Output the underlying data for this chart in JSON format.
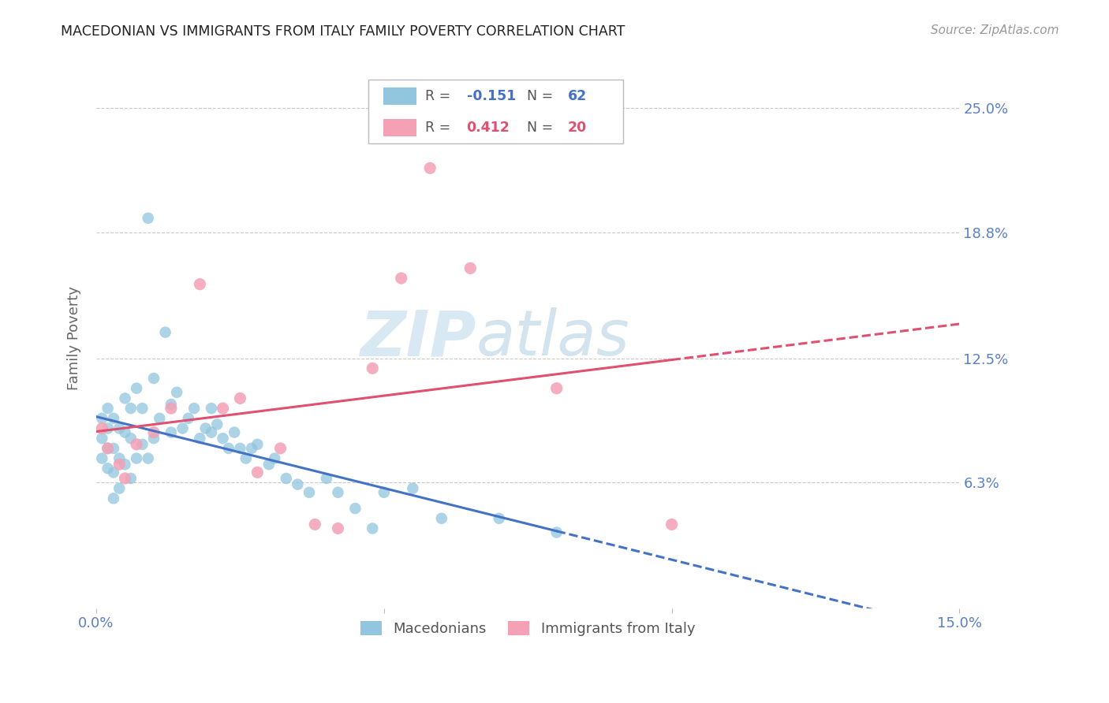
{
  "title": "MACEDONIAN VS IMMIGRANTS FROM ITALY FAMILY POVERTY CORRELATION CHART",
  "source": "Source: ZipAtlas.com",
  "ylabel": "Family Poverty",
  "watermark": "ZIPatlas",
  "xlim": [
    0.0,
    0.15
  ],
  "ylim": [
    0.0,
    0.27
  ],
  "ytick_labels": [
    "6.3%",
    "12.5%",
    "18.8%",
    "25.0%"
  ],
  "ytick_values": [
    0.063,
    0.125,
    0.188,
    0.25
  ],
  "legend_blue_r": "-0.151",
  "legend_blue_n": "62",
  "legend_pink_r": "0.412",
  "legend_pink_n": "20",
  "label_macedonians": "Macedonians",
  "label_italy": "Immigrants from Italy",
  "blue_color": "#92c5de",
  "pink_color": "#f4a0b5",
  "trend_blue_color": "#4472c4",
  "trend_pink_color": "#e05070",
  "axis_color": "#5b7fc7",
  "grid_color": "#c8c8c8",
  "macedonian_x": [
    0.001,
    0.001,
    0.001,
    0.002,
    0.002,
    0.002,
    0.002,
    0.003,
    0.003,
    0.003,
    0.003,
    0.004,
    0.004,
    0.004,
    0.005,
    0.005,
    0.005,
    0.006,
    0.006,
    0.006,
    0.007,
    0.007,
    0.008,
    0.008,
    0.009,
    0.009,
    0.01,
    0.01,
    0.011,
    0.012,
    0.013,
    0.013,
    0.014,
    0.015,
    0.016,
    0.017,
    0.018,
    0.019,
    0.02,
    0.02,
    0.021,
    0.022,
    0.023,
    0.024,
    0.025,
    0.026,
    0.027,
    0.028,
    0.03,
    0.031,
    0.033,
    0.035,
    0.037,
    0.04,
    0.042,
    0.045,
    0.048,
    0.05,
    0.055,
    0.06,
    0.07,
    0.08
  ],
  "macedonian_y": [
    0.095,
    0.085,
    0.075,
    0.1,
    0.09,
    0.08,
    0.07,
    0.095,
    0.08,
    0.068,
    0.055,
    0.09,
    0.075,
    0.06,
    0.105,
    0.088,
    0.072,
    0.1,
    0.085,
    0.065,
    0.11,
    0.075,
    0.1,
    0.082,
    0.195,
    0.075,
    0.115,
    0.085,
    0.095,
    0.138,
    0.102,
    0.088,
    0.108,
    0.09,
    0.095,
    0.1,
    0.085,
    0.09,
    0.1,
    0.088,
    0.092,
    0.085,
    0.08,
    0.088,
    0.08,
    0.075,
    0.08,
    0.082,
    0.072,
    0.075,
    0.065,
    0.062,
    0.058,
    0.065,
    0.058,
    0.05,
    0.04,
    0.058,
    0.06,
    0.045,
    0.045,
    0.038
  ],
  "italy_x": [
    0.001,
    0.002,
    0.004,
    0.005,
    0.007,
    0.01,
    0.013,
    0.018,
    0.022,
    0.025,
    0.028,
    0.032,
    0.038,
    0.042,
    0.048,
    0.053,
    0.058,
    0.065,
    0.08,
    0.1
  ],
  "italy_y": [
    0.09,
    0.08,
    0.072,
    0.065,
    0.082,
    0.088,
    0.1,
    0.162,
    0.1,
    0.105,
    0.068,
    0.08,
    0.042,
    0.04,
    0.12,
    0.165,
    0.22,
    0.17,
    0.11,
    0.042
  ]
}
